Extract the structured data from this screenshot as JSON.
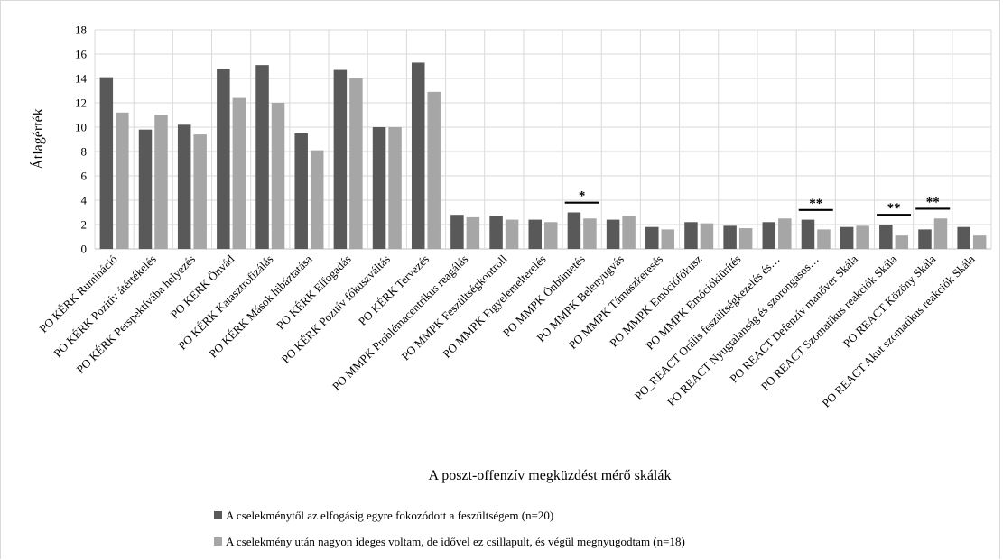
{
  "chart_data": {
    "type": "bar",
    "title": "",
    "xlabel": "A poszt-offenzív megküzdést mérő skálák",
    "ylabel": "Átlagérték",
    "ylim": [
      0,
      18
    ],
    "yticks": [
      0,
      2,
      4,
      6,
      8,
      10,
      12,
      14,
      16,
      18
    ],
    "grid": true,
    "legend_position": "bottom-left",
    "categories": [
      "PO KÉRK Rumináció",
      "PO KÉRK Pozitív átértékelés",
      "PO KÉRK Perspektívába helyezés",
      "PO KÉRK Önvád",
      "PO KÉRK Katasztrofizálás",
      "PO KÉRK Mások hibáztatása",
      "PO KÉRK Elfogadás",
      "PO KÉRK Pozitív fókuszváltás",
      "PO KÉRK Tervezés",
      "PO MMPK Problémacentrikus reagálás",
      "PO MMPK Feszültségkontroll",
      "PO MMPK Figyelemelterelés",
      "PO MMPK Önbüntetés",
      "PO MMPK Belenyugvás",
      "PO MMPK Támaszkeresés",
      "PO MMPK Emóciófókusz",
      "PO MMPK Emóciókiürítés",
      "PO_REACT Orális feszültségkezelés és…",
      "PO REACT Nyugtalanság és szorongásos…",
      "PO REACT Defenzív manőver Skála",
      "PO REACT Szomatikus reakciók Skála",
      "PO REACT Közöny Skála",
      "PO REACT Akut szomatikus reakciók Skála"
    ],
    "series": [
      {
        "name": "A cselekménytől az elfogásig egyre fokozódott a feszültségem (n=20)",
        "color": "#595959",
        "values": [
          14.1,
          9.8,
          10.2,
          14.8,
          15.1,
          9.5,
          14.7,
          10.0,
          15.3,
          2.8,
          2.7,
          2.4,
          3.0,
          2.4,
          1.8,
          2.2,
          1.9,
          2.2,
          2.4,
          1.8,
          2.0,
          1.6,
          1.8
        ]
      },
      {
        "name": "A cselekmény után nagyon ideges voltam, de idővel ez csillapult, és végül megnyugodtam (n=18)",
        "color": "#a6a6a6",
        "values": [
          11.2,
          11.0,
          9.4,
          12.4,
          12.0,
          8.1,
          14.0,
          10.0,
          12.9,
          2.6,
          2.4,
          2.2,
          2.5,
          2.7,
          1.6,
          2.1,
          1.7,
          2.5,
          1.6,
          1.9,
          1.1,
          2.5,
          1.1
        ]
      }
    ],
    "annotations": [
      {
        "category_index": 12,
        "text": "*",
        "y": 3.8
      },
      {
        "category_index": 18,
        "text": "**",
        "y": 3.2
      },
      {
        "category_index": 20,
        "text": "**",
        "y": 2.8
      },
      {
        "category_index": 21,
        "text": "**",
        "y": 3.3
      }
    ]
  }
}
